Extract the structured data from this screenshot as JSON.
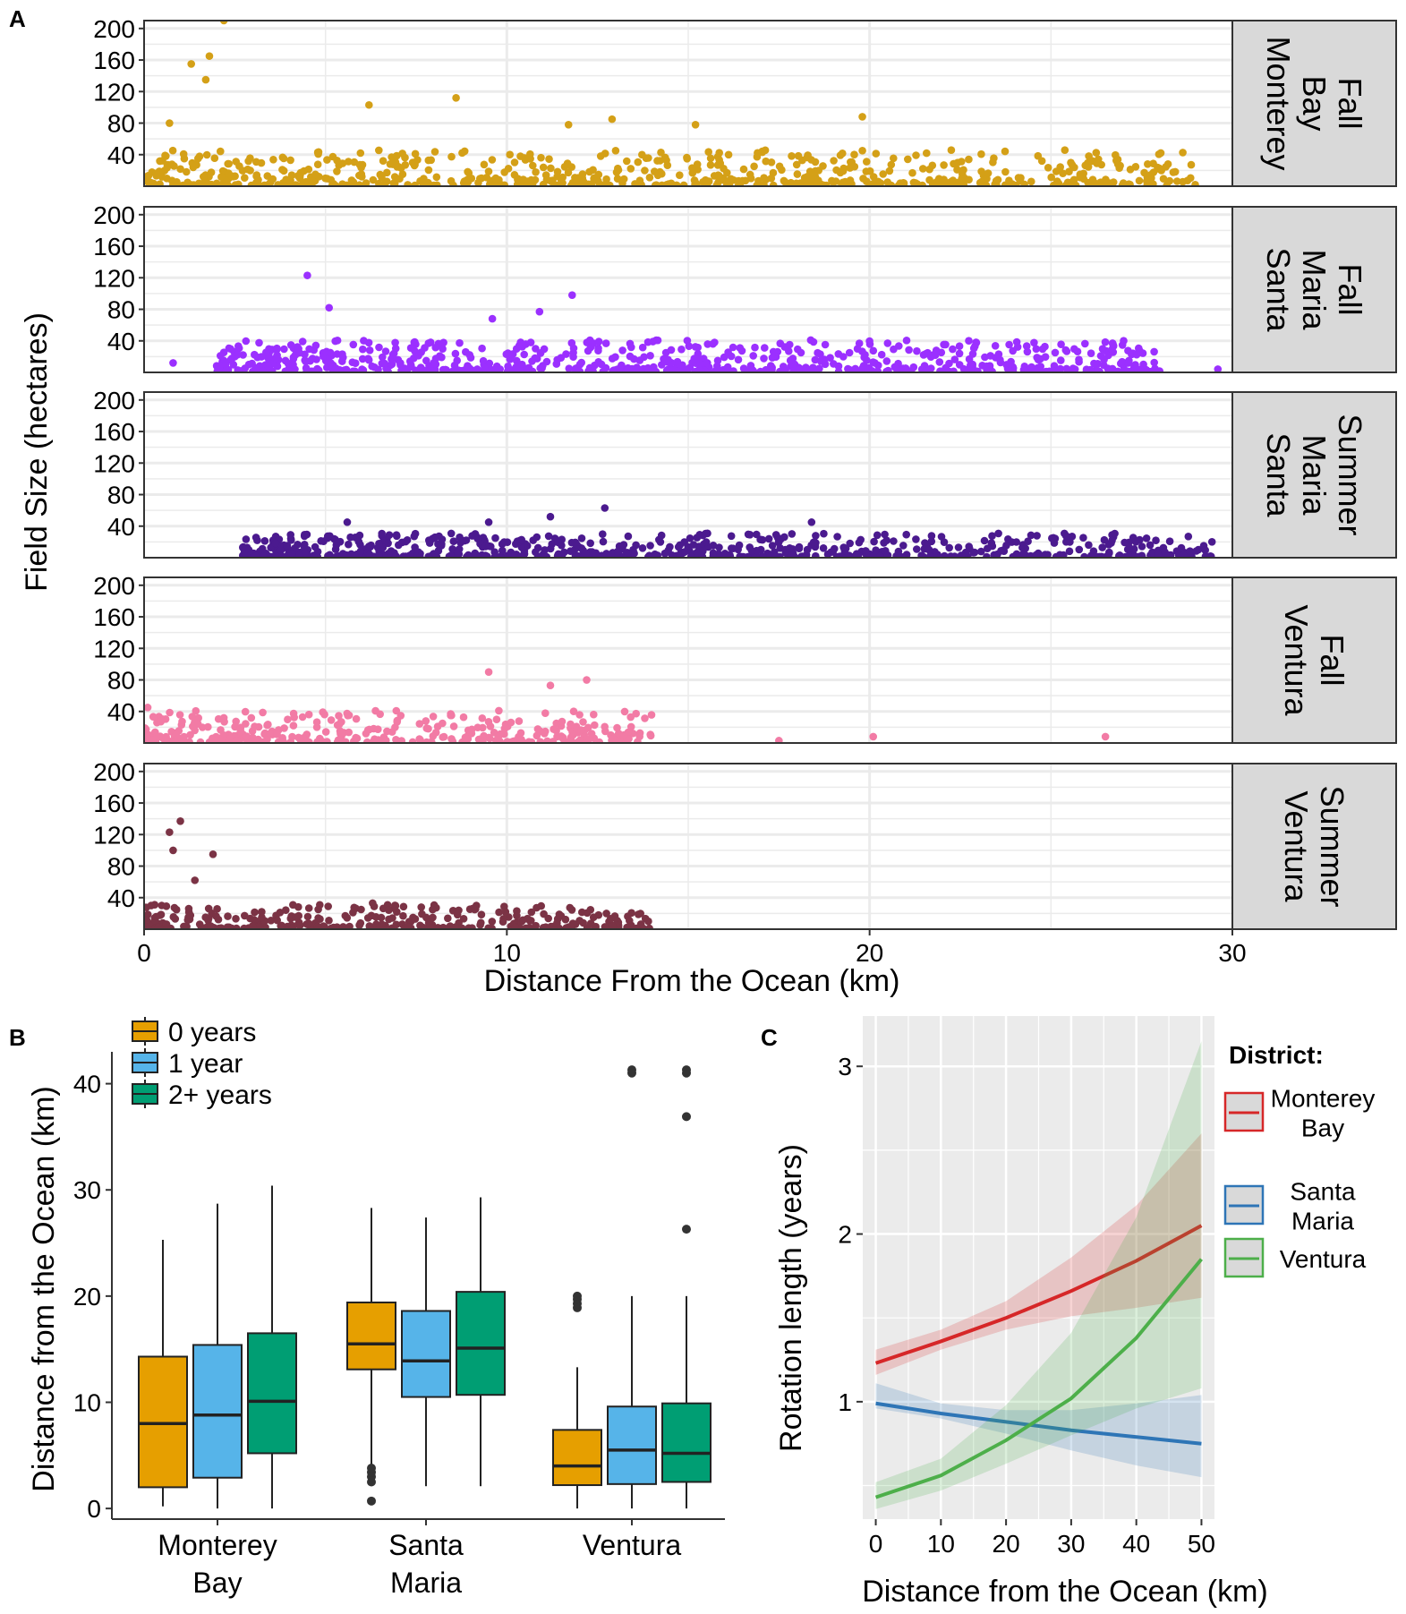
{
  "chart_data": [
    {
      "panel_label": "A",
      "type": "scatter",
      "xlabel": "Distance From the Ocean (km)",
      "ylabel": "Field Size (hectares)",
      "xlim": [
        0,
        30
      ],
      "ylim": [
        0,
        210
      ],
      "x_ticks": [
        "0",
        "10",
        "20",
        "30"
      ],
      "y_ticks": [
        "40",
        "80",
        "120",
        "160",
        "200"
      ],
      "facets": [
        {
          "label_lines": [
            "Monterey",
            "Bay",
            "Fall"
          ],
          "color": "#D4A017",
          "notable_points": [
            [
              2.2,
              210
            ],
            [
              1.3,
              155
            ],
            [
              1.8,
              165
            ],
            [
              1.7,
              135
            ],
            [
              6.2,
              103
            ],
            [
              8.6,
              112
            ],
            [
              19.8,
              88
            ],
            [
              12.9,
              85
            ],
            [
              15.2,
              78
            ],
            [
              11.7,
              78
            ],
            [
              0.7,
              80
            ]
          ],
          "spread": {
            "x_range": [
              0,
              29
            ],
            "max_y_typical": 45,
            "n": 700
          }
        },
        {
          "label_lines": [
            "Santa",
            "Maria",
            "Fall"
          ],
          "color": "#9B30FF",
          "notable_points": [
            [
              4.5,
              123
            ],
            [
              11.8,
              98
            ],
            [
              5.1,
              82
            ],
            [
              10.9,
              77
            ],
            [
              9.6,
              68
            ],
            [
              0.8,
              12
            ],
            [
              29.6,
              4
            ]
          ],
          "spread": {
            "x_range": [
              2,
              28
            ],
            "max_y_typical": 40,
            "n": 700
          }
        },
        {
          "label_lines": [
            "Santa",
            "Maria",
            "Summer"
          ],
          "color": "#4B1A8F",
          "notable_points": [
            [
              12.7,
              63
            ],
            [
              11.2,
              52
            ],
            [
              9.5,
              45
            ],
            [
              5.6,
              45
            ],
            [
              18.4,
              45
            ]
          ],
          "spread": {
            "x_range": [
              2.7,
              29.5
            ],
            "max_y_typical": 30,
            "n": 650
          }
        },
        {
          "label_lines": [
            "Ventura",
            "Fall"
          ],
          "color": "#F27BA5",
          "notable_points": [
            [
              9.5,
              90
            ],
            [
              12.2,
              80
            ],
            [
              11.2,
              73
            ],
            [
              0.1,
              45
            ],
            [
              26.5,
              8
            ],
            [
              17.5,
              3
            ],
            [
              20.1,
              8
            ]
          ],
          "spread": {
            "x_range": [
              0,
              14
            ],
            "max_y_typical": 40,
            "n": 360
          }
        },
        {
          "label_lines": [
            "Ventura",
            "Summer"
          ],
          "color": "#7B3345",
          "notable_points": [
            [
              1.0,
              137
            ],
            [
              0.7,
              123
            ],
            [
              1.9,
              95
            ],
            [
              0.8,
              100
            ],
            [
              1.4,
              62
            ],
            [
              6.3,
              33
            ],
            [
              13.9,
              10
            ]
          ],
          "spread": {
            "x_range": [
              0,
              14
            ],
            "max_y_typical": 30,
            "n": 320
          }
        }
      ]
    },
    {
      "panel_label": "B",
      "type": "boxplot",
      "ylabel": "Distance from the Ocean (km)",
      "ylim": [
        -1,
        43
      ],
      "y_ticks": [
        "0",
        "10",
        "20",
        "30",
        "40"
      ],
      "legend": [
        {
          "name": "0 years",
          "color": "#E69F00"
        },
        {
          "name": "1 year",
          "color": "#56B4E9"
        },
        {
          "name": "2+ years",
          "color": "#009E73"
        }
      ],
      "groups": [
        {
          "label_lines": [
            "Monterey",
            "Bay"
          ],
          "boxes": [
            {
              "min": 0.2,
              "q1": 2.0,
              "median": 8.0,
              "q3": 14.3,
              "max": 25.3,
              "outliers": []
            },
            {
              "min": 0,
              "q1": 2.9,
              "median": 8.8,
              "q3": 15.4,
              "max": 28.7,
              "outliers": []
            },
            {
              "min": 0,
              "q1": 5.2,
              "median": 10.1,
              "q3": 16.5,
              "max": 30.4,
              "outliers": []
            }
          ]
        },
        {
          "label_lines": [
            "Santa",
            "Maria"
          ],
          "boxes": [
            {
              "min": 4.0,
              "q1": 13.1,
              "median": 15.5,
              "q3": 19.4,
              "max": 28.3,
              "outliers": [
                0.7,
                2.5,
                3.0,
                3.4,
                3.8
              ]
            },
            {
              "min": 2.1,
              "q1": 10.5,
              "median": 13.9,
              "q3": 18.6,
              "max": 27.4,
              "outliers": []
            },
            {
              "min": 2.1,
              "q1": 10.7,
              "median": 15.1,
              "q3": 20.4,
              "max": 29.3,
              "outliers": []
            }
          ]
        },
        {
          "label_lines": [
            "Ventura"
          ],
          "boxes": [
            {
              "min": 0,
              "q1": 2.2,
              "median": 4.0,
              "q3": 7.4,
              "max": 13.3,
              "outliers": [
                18.9,
                19.3,
                19.7,
                20.0
              ]
            },
            {
              "min": 0,
              "q1": 2.3,
              "median": 5.5,
              "q3": 9.6,
              "max": 20.0,
              "outliers": [
                41.0,
                41.3
              ]
            },
            {
              "min": 0,
              "q1": 2.5,
              "median": 5.2,
              "q3": 9.9,
              "max": 20.0,
              "outliers": [
                26.3,
                36.9,
                41.0,
                41.3
              ]
            }
          ]
        }
      ]
    },
    {
      "panel_label": "C",
      "type": "line",
      "xlabel": "Distance from the Ocean (km)",
      "ylabel": "Rotation length (years)",
      "xlim": [
        -2,
        52
      ],
      "ylim": [
        0.3,
        3.3
      ],
      "x_ticks": [
        "0",
        "10",
        "20",
        "30",
        "40",
        "50"
      ],
      "y_ticks": [
        "1",
        "2",
        "3"
      ],
      "legend_title": "District:",
      "x": [
        0,
        10,
        20,
        30,
        40,
        50
      ],
      "series": [
        {
          "name": "Monterey Bay",
          "label_lines": [
            "Monterey",
            "Bay"
          ],
          "color": "#D62728",
          "values": [
            1.23,
            1.36,
            1.5,
            1.66,
            1.84,
            2.05
          ],
          "lower": [
            1.16,
            1.31,
            1.43,
            1.51,
            1.56,
            1.62
          ],
          "upper": [
            1.31,
            1.43,
            1.6,
            1.86,
            2.17,
            2.6
          ]
        },
        {
          "name": "Santa Maria",
          "label_lines": [
            "Santa",
            "Maria"
          ],
          "color": "#2E75B6",
          "values": [
            0.99,
            0.93,
            0.88,
            0.83,
            0.79,
            0.75
          ],
          "lower": [
            0.96,
            0.9,
            0.81,
            0.71,
            0.62,
            0.55
          ],
          "upper": [
            1.11,
            0.99,
            0.95,
            0.95,
            0.99,
            1.04
          ]
        },
        {
          "name": "Ventura",
          "label_lines": [
            "Ventura"
          ],
          "color": "#4DAF4A",
          "values": [
            0.43,
            0.56,
            0.77,
            1.02,
            1.38,
            1.85
          ],
          "lower": [
            0.36,
            0.47,
            0.63,
            0.8,
            0.96,
            1.08
          ],
          "upper": [
            0.52,
            0.66,
            0.98,
            1.41,
            2.1,
            3.15
          ]
        }
      ]
    }
  ]
}
